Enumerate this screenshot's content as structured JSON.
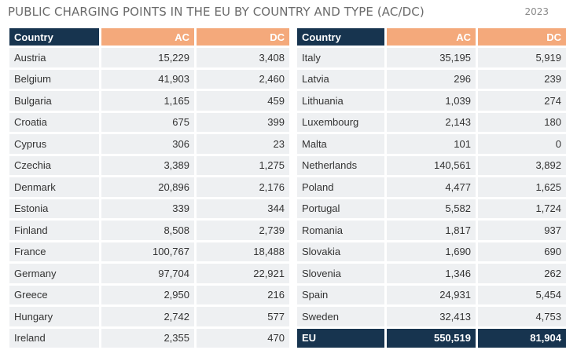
{
  "title": "PUBLIC CHARGING POINTS IN THE EU BY COUNTRY AND TYPE (AC/DC)",
  "year": "2023",
  "columns": [
    "Country",
    "AC",
    "DC"
  ],
  "left_rows": [
    [
      "Austria",
      "15,229",
      "3,408"
    ],
    [
      "Belgium",
      "41,903",
      "2,460"
    ],
    [
      "Bulgaria",
      "1,165",
      "459"
    ],
    [
      "Croatia",
      "675",
      "399"
    ],
    [
      "Cyprus",
      "306",
      "23"
    ],
    [
      "Czechia",
      "3,389",
      "1,275"
    ],
    [
      "Denmark",
      "20,896",
      "2,176"
    ],
    [
      "Estonia",
      "339",
      "344"
    ],
    [
      "Finland",
      "8,508",
      "2,739"
    ],
    [
      "France",
      "100,767",
      "18,488"
    ],
    [
      "Germany",
      "97,704",
      "22,921"
    ],
    [
      "Greece",
      "2,950",
      "216"
    ],
    [
      "Hungary",
      "2,742",
      "577"
    ],
    [
      "Ireland",
      "2,355",
      "470"
    ]
  ],
  "right_rows": [
    [
      "Italy",
      "35,195",
      "5,919"
    ],
    [
      "Latvia",
      "296",
      "239"
    ],
    [
      "Lithuania",
      "1,039",
      "274"
    ],
    [
      "Luxembourg",
      "2,143",
      "180"
    ],
    [
      "Malta",
      "101",
      "0"
    ],
    [
      "Netherlands",
      "140,561",
      "3,892"
    ],
    [
      "Poland",
      "4,477",
      "1,625"
    ],
    [
      "Portugal",
      "5,582",
      "1,724"
    ],
    [
      "Romania",
      "1,817",
      "937"
    ],
    [
      "Slovakia",
      "1,690",
      "690"
    ],
    [
      "Slovenia",
      "1,346",
      "262"
    ],
    [
      "Spain",
      "24,931",
      "5,454"
    ],
    [
      "Sweden",
      "32,413",
      "4,753"
    ]
  ],
  "total_row": [
    "EU",
    "550,519",
    "81,904"
  ],
  "colors": {
    "header_dark": "#17344f",
    "header_accent": "#f4a97b",
    "row_bg": "#eef0f2"
  }
}
